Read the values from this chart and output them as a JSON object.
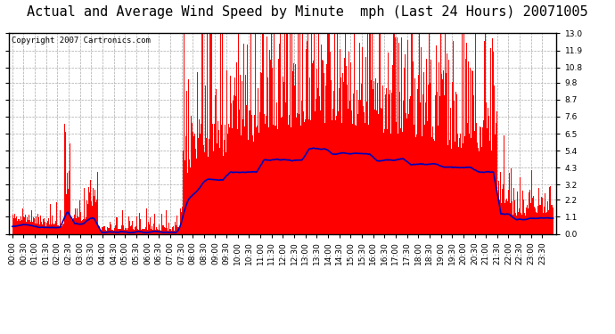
{
  "title": "Actual and Average Wind Speed by Minute  mph (Last 24 Hours) 20071005",
  "copyright": "Copyright 2007 Cartronics.com",
  "yticks": [
    0.0,
    1.1,
    2.2,
    3.2,
    4.3,
    5.4,
    6.5,
    7.6,
    8.7,
    9.8,
    10.8,
    11.9,
    13.0
  ],
  "ylim": [
    0.0,
    13.0
  ],
  "bar_color": "#FF0000",
  "line_color": "#0000BB",
  "bg_color": "#FFFFFF",
  "plot_bg_color": "#FFFFFF",
  "grid_color": "#AAAAAA",
  "title_fontsize": 11,
  "copyright_fontsize": 6.5,
  "tick_fontsize": 6.5,
  "n_minutes": 1440
}
